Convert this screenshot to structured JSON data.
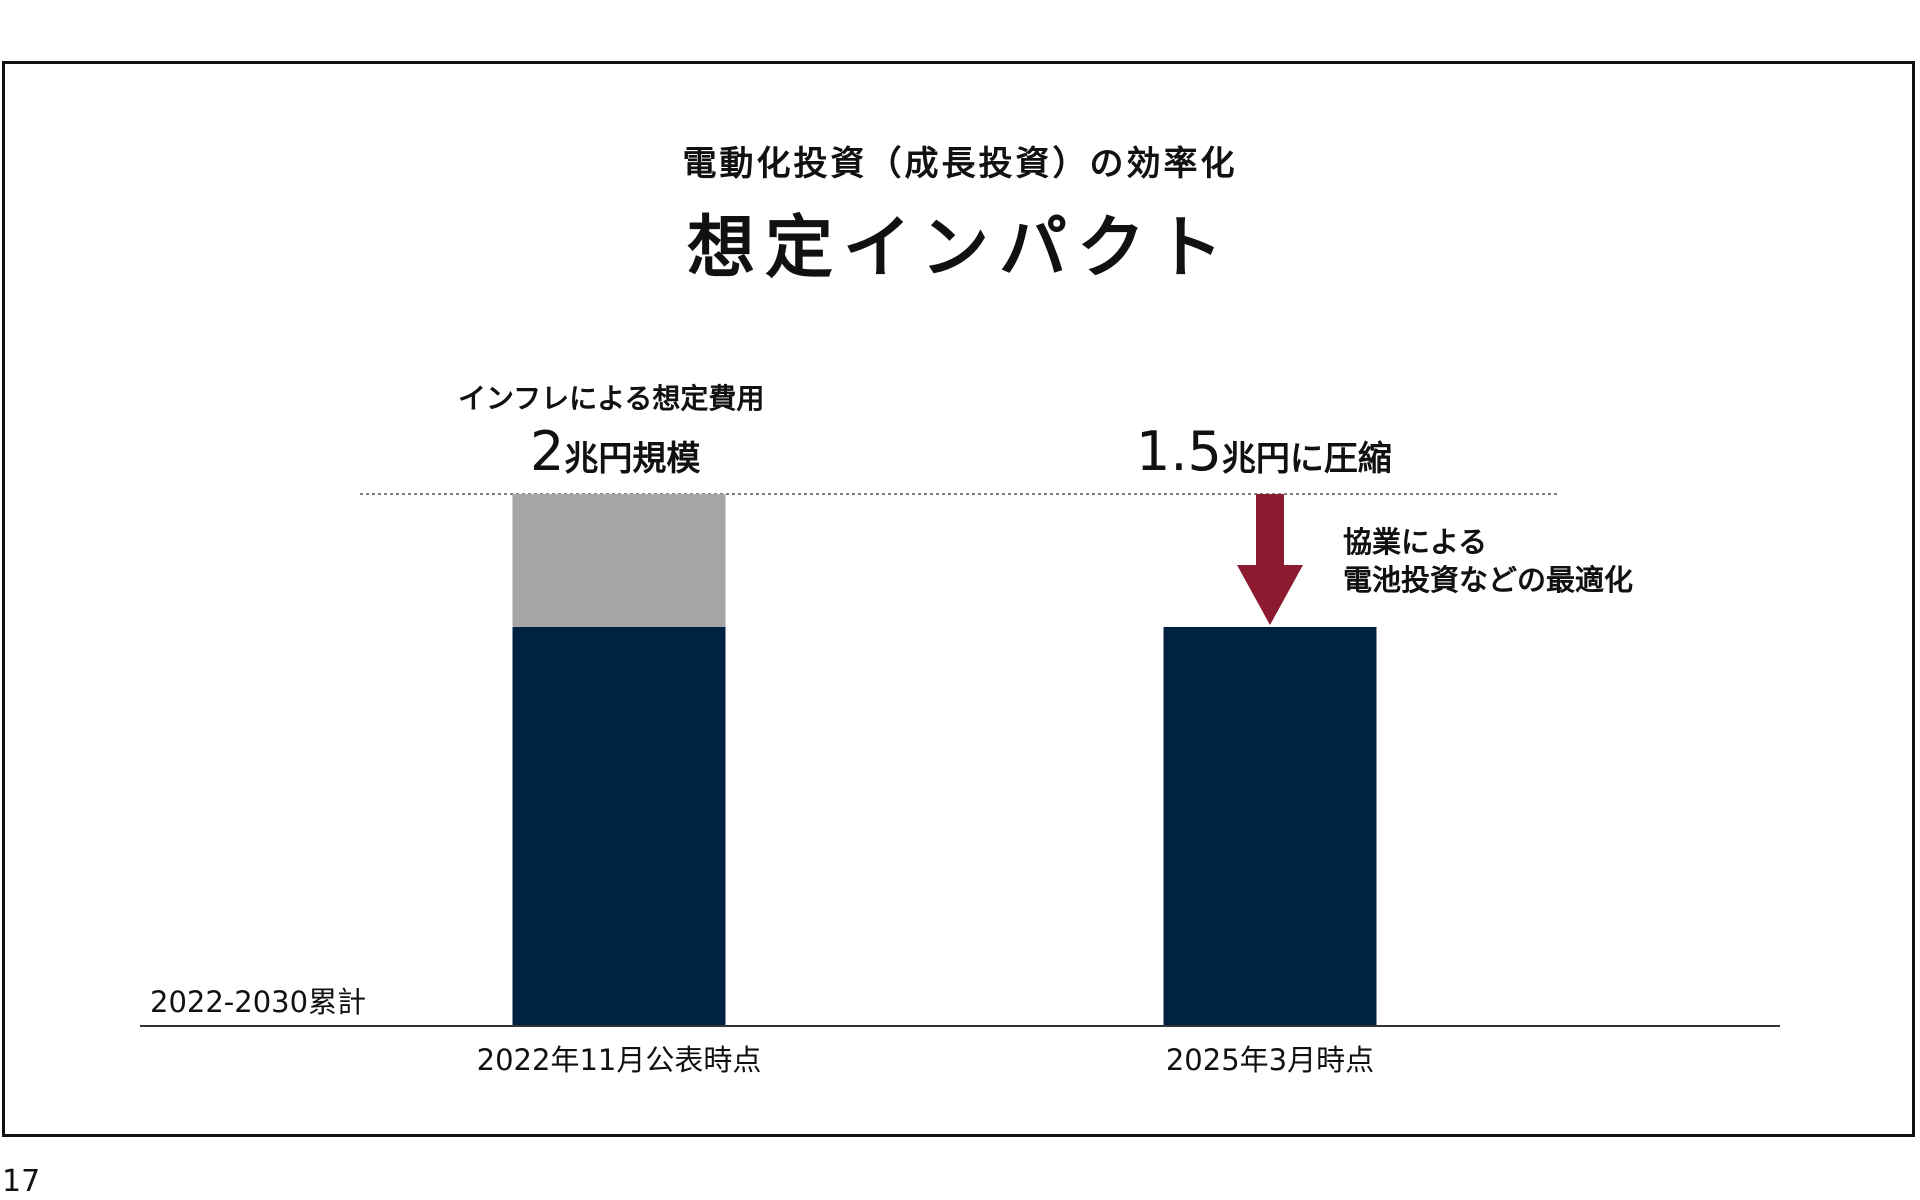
{
  "slide": {
    "subtitle": "電動化投資（成長投資）の効率化",
    "title": "想定インパクト",
    "page_number": "17",
    "annotations": {
      "inflation_note": "インフレによる想定費用",
      "left_value_number": "2",
      "left_value_unit": "兆円規模",
      "right_value_number": "1.5",
      "right_value_unit": "兆円に圧縮",
      "callout_line1": "協業による",
      "callout_line2": "電池投資などの最適化",
      "cumulative_label": "2022-2030累計"
    }
  },
  "chart_data": {
    "type": "bar",
    "stacked": true,
    "title": "想定インパクト",
    "categories": [
      "2022年11月公表時点",
      "2025年3月時点"
    ],
    "series": [
      {
        "name": "",
        "values": [
          1.5,
          1.5
        ],
        "color": "#002242"
      },
      {
        "name": "",
        "values": [
          0.5,
          0
        ],
        "color": "#a6a6a6"
      }
    ],
    "totals_labels": [
      "2兆円規模",
      "1.5兆円に圧縮"
    ],
    "reference_line": {
      "value": 2,
      "style": "dotted"
    },
    "arrow": {
      "category": "2025年3月時点",
      "from": 2,
      "to": 1.5,
      "color": "#8c1b2f"
    },
    "ylim": [
      0,
      2
    ],
    "grid": false,
    "legend": "none",
    "units": "兆円"
  }
}
